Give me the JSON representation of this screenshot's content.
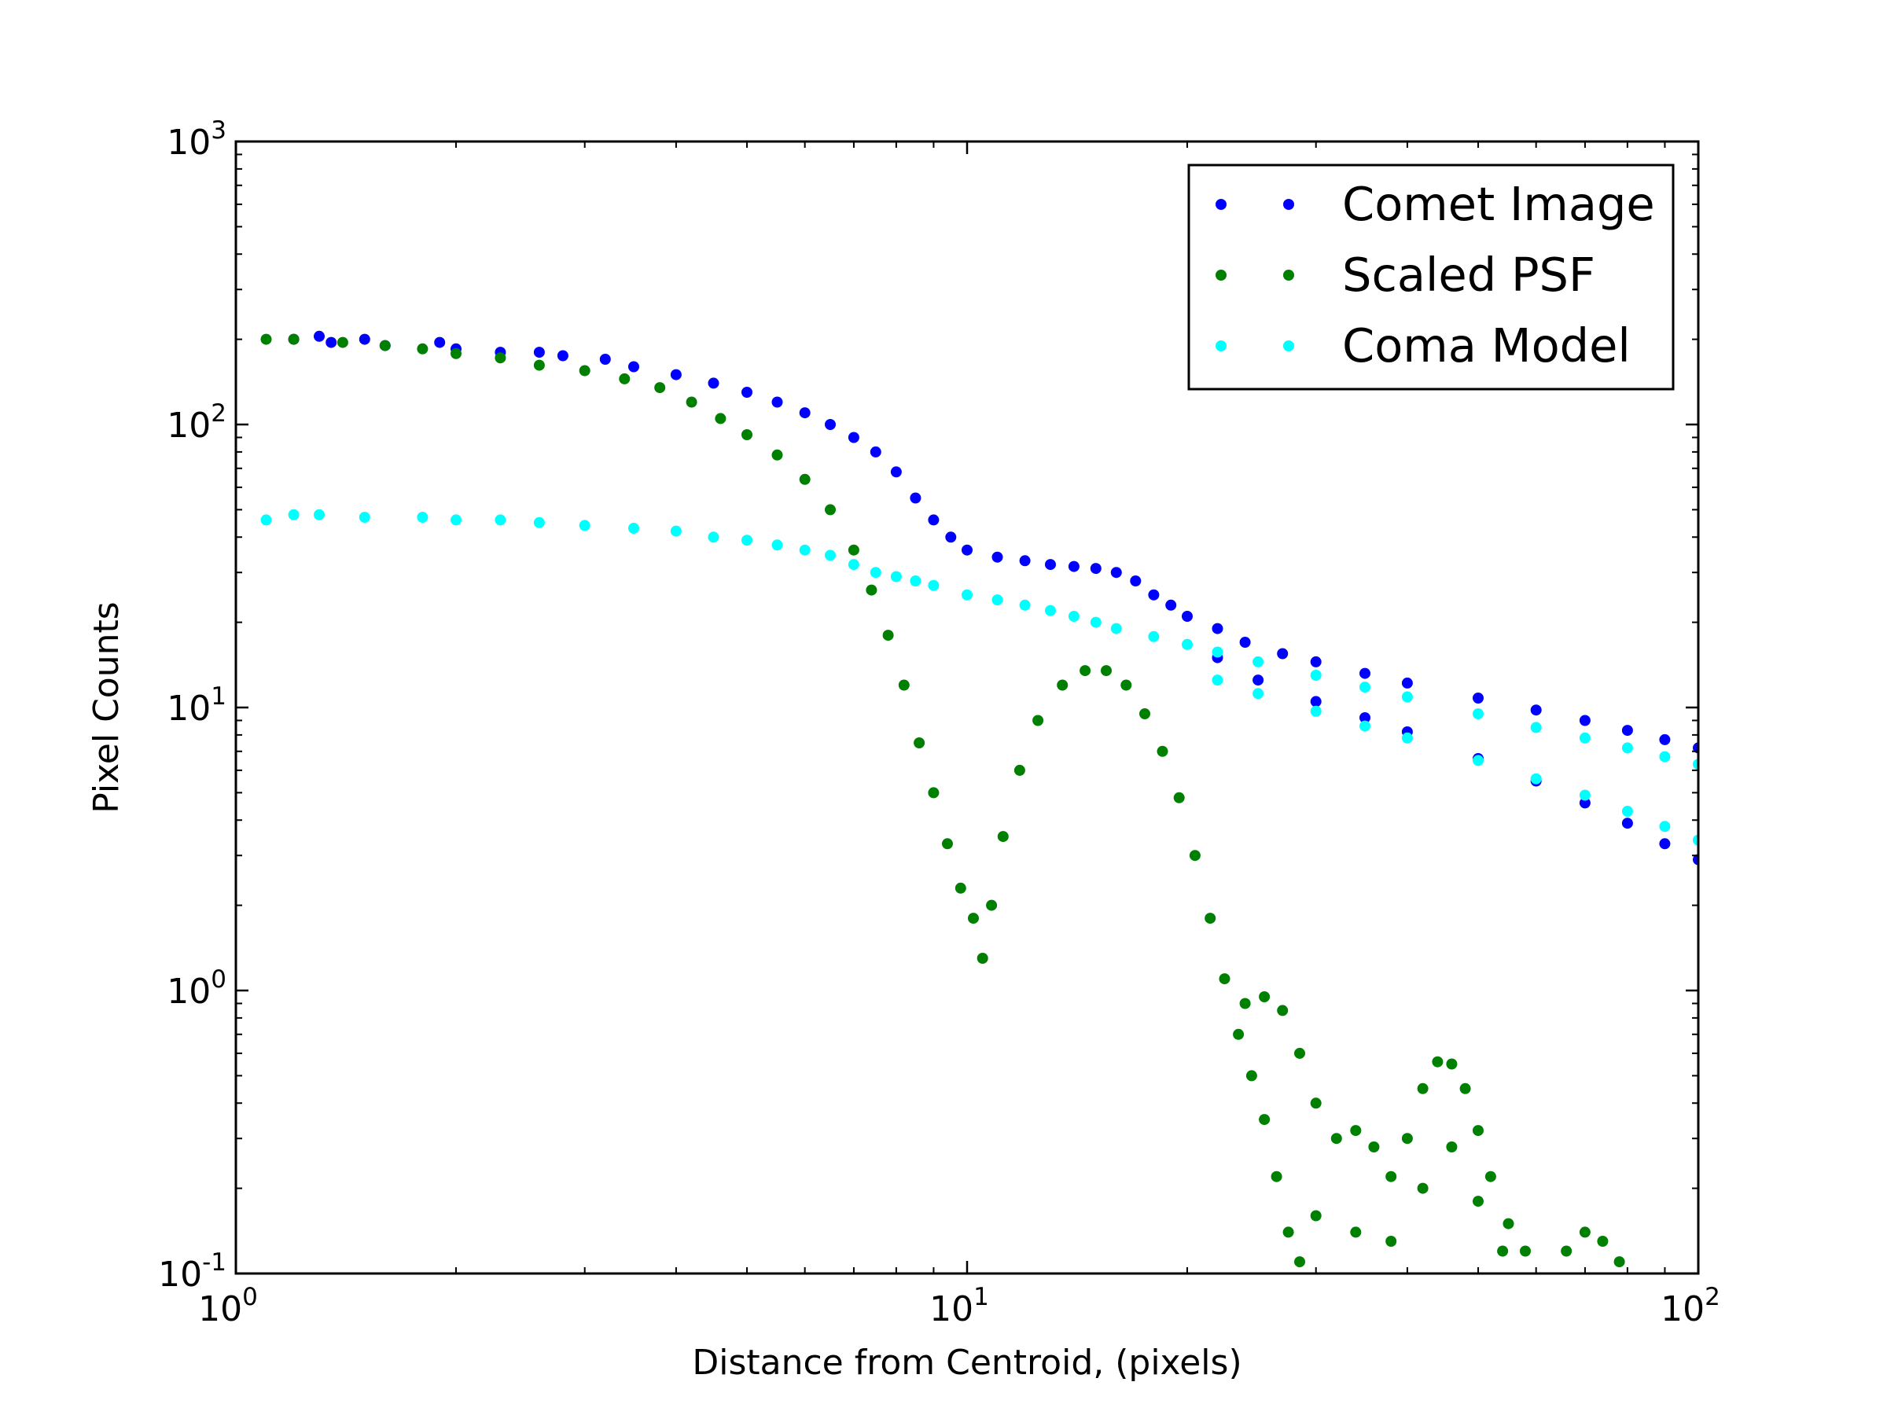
{
  "chart_data": {
    "type": "scatter",
    "title": "",
    "xlabel": "Distance from Centroid, (pixels)",
    "ylabel": "Pixel Counts",
    "xscale": "log",
    "yscale": "log",
    "xlim": [
      1,
      100
    ],
    "ylim": [
      0.1,
      1000
    ],
    "grid": false,
    "legend_position": "top-right",
    "x_ticks": [
      {
        "value": 1,
        "base": "10",
        "exp": "0"
      },
      {
        "value": 10,
        "base": "10",
        "exp": "1"
      },
      {
        "value": 100,
        "base": "10",
        "exp": "2"
      }
    ],
    "y_ticks": [
      {
        "value": 0.1,
        "base": "10",
        "exp": "-1"
      },
      {
        "value": 1,
        "base": "10",
        "exp": "0"
      },
      {
        "value": 10,
        "base": "10",
        "exp": "1"
      },
      {
        "value": 100,
        "base": "10",
        "exp": "2"
      },
      {
        "value": 1000,
        "base": "10",
        "exp": "3"
      }
    ],
    "series": [
      {
        "name": "Comet Image",
        "color": "#0000ff",
        "points": [
          [
            1.2,
            200
          ],
          [
            1.3,
            205
          ],
          [
            1.35,
            195
          ],
          [
            1.5,
            200
          ],
          [
            1.6,
            190
          ],
          [
            1.9,
            195
          ],
          [
            2.0,
            185
          ],
          [
            2.3,
            180
          ],
          [
            2.6,
            180
          ],
          [
            2.8,
            175
          ],
          [
            3.2,
            170
          ],
          [
            3.5,
            160
          ],
          [
            4.0,
            150
          ],
          [
            4.5,
            140
          ],
          [
            5.0,
            130
          ],
          [
            5.5,
            120
          ],
          [
            6.0,
            110
          ],
          [
            6.5,
            100
          ],
          [
            7.0,
            90
          ],
          [
            7.5,
            80
          ],
          [
            8.0,
            68
          ],
          [
            8.5,
            55
          ],
          [
            9.0,
            46
          ],
          [
            9.5,
            40
          ],
          [
            10.0,
            36
          ],
          [
            11.0,
            34
          ],
          [
            12.0,
            33
          ],
          [
            13.0,
            32
          ],
          [
            14.0,
            31.5
          ],
          [
            15.0,
            31
          ],
          [
            16.0,
            30
          ],
          [
            17.0,
            28
          ],
          [
            18.0,
            25
          ],
          [
            19.0,
            23
          ],
          [
            20.0,
            21
          ],
          [
            22.0,
            19
          ],
          [
            24.0,
            17
          ],
          [
            27.0,
            15.5
          ],
          [
            30.0,
            14.5
          ],
          [
            35.0,
            13.2
          ],
          [
            40.0,
            12.2
          ],
          [
            50.0,
            10.8
          ],
          [
            60.0,
            9.8
          ],
          [
            70.0,
            9.0
          ],
          [
            80.0,
            8.3
          ],
          [
            90.0,
            7.7
          ],
          [
            100.0,
            7.2
          ],
          [
            22.0,
            15
          ],
          [
            25.0,
            12.5
          ],
          [
            30.0,
            10.5
          ],
          [
            35.0,
            9.2
          ],
          [
            40.0,
            8.2
          ],
          [
            50.0,
            6.6
          ],
          [
            60.0,
            5.5
          ],
          [
            70.0,
            4.6
          ],
          [
            80.0,
            3.9
          ],
          [
            90.0,
            3.3
          ],
          [
            100.0,
            2.9
          ]
        ]
      },
      {
        "name": "Scaled PSF",
        "color": "#008000",
        "points": [
          [
            1.1,
            200
          ],
          [
            1.2,
            200
          ],
          [
            1.4,
            195
          ],
          [
            1.6,
            190
          ],
          [
            1.8,
            185
          ],
          [
            2.0,
            178
          ],
          [
            2.3,
            172
          ],
          [
            2.6,
            162
          ],
          [
            3.0,
            155
          ],
          [
            3.4,
            145
          ],
          [
            3.8,
            135
          ],
          [
            4.2,
            120
          ],
          [
            4.6,
            105
          ],
          [
            5.0,
            92
          ],
          [
            5.5,
            78
          ],
          [
            6.0,
            64
          ],
          [
            6.5,
            50
          ],
          [
            7.0,
            36
          ],
          [
            7.4,
            26
          ],
          [
            7.8,
            18
          ],
          [
            8.2,
            12
          ],
          [
            8.6,
            7.5
          ],
          [
            9.0,
            5.0
          ],
          [
            9.4,
            3.3
          ],
          [
            9.8,
            2.3
          ],
          [
            10.2,
            1.8
          ],
          [
            10.5,
            1.3
          ],
          [
            10.8,
            2.0
          ],
          [
            11.2,
            3.5
          ],
          [
            11.8,
            6.0
          ],
          [
            12.5,
            9.0
          ],
          [
            13.5,
            12.0
          ],
          [
            14.5,
            13.5
          ],
          [
            15.5,
            13.5
          ],
          [
            16.5,
            12.0
          ],
          [
            17.5,
            9.5
          ],
          [
            18.5,
            7.0
          ],
          [
            19.5,
            4.8
          ],
          [
            20.5,
            3.0
          ],
          [
            21.5,
            1.8
          ],
          [
            22.5,
            1.1
          ],
          [
            23.5,
            0.7
          ],
          [
            24.5,
            0.5
          ],
          [
            25.5,
            0.35
          ],
          [
            26.5,
            0.22
          ],
          [
            27.5,
            0.14
          ],
          [
            28.5,
            0.11
          ],
          [
            24.0,
            0.9
          ],
          [
            25.5,
            0.95
          ],
          [
            27.0,
            0.85
          ],
          [
            28.5,
            0.6
          ],
          [
            30.0,
            0.4
          ],
          [
            32.0,
            0.3
          ],
          [
            34.0,
            0.32
          ],
          [
            36.0,
            0.28
          ],
          [
            38.0,
            0.22
          ],
          [
            40.0,
            0.3
          ],
          [
            42.0,
            0.45
          ],
          [
            44.0,
            0.56
          ],
          [
            46.0,
            0.55
          ],
          [
            48.0,
            0.45
          ],
          [
            50.0,
            0.32
          ],
          [
            52.0,
            0.22
          ],
          [
            55.0,
            0.15
          ],
          [
            58.0,
            0.12
          ],
          [
            30.0,
            0.16
          ],
          [
            34.0,
            0.14
          ],
          [
            38.0,
            0.13
          ],
          [
            42.0,
            0.2
          ],
          [
            46.0,
            0.28
          ],
          [
            50.0,
            0.18
          ],
          [
            54.0,
            0.12
          ],
          [
            66.0,
            0.12
          ],
          [
            70.0,
            0.14
          ],
          [
            74.0,
            0.13
          ],
          [
            78.0,
            0.11
          ]
        ]
      },
      {
        "name": "Coma Model",
        "color": "#00ffff",
        "points": [
          [
            1.1,
            46
          ],
          [
            1.2,
            48
          ],
          [
            1.3,
            48
          ],
          [
            1.5,
            47
          ],
          [
            1.8,
            47
          ],
          [
            2.0,
            46
          ],
          [
            2.3,
            46
          ],
          [
            2.6,
            45
          ],
          [
            3.0,
            44
          ],
          [
            3.5,
            43
          ],
          [
            4.0,
            42
          ],
          [
            4.5,
            40
          ],
          [
            5.0,
            39
          ],
          [
            5.5,
            37.5
          ],
          [
            6.0,
            36
          ],
          [
            6.5,
            34.5
          ],
          [
            7.0,
            32
          ],
          [
            7.5,
            30
          ],
          [
            8.0,
            29
          ],
          [
            8.5,
            28
          ],
          [
            9.0,
            27
          ],
          [
            10.0,
            25
          ],
          [
            11.0,
            24
          ],
          [
            12.0,
            23
          ],
          [
            13.0,
            22
          ],
          [
            14.0,
            21
          ],
          [
            15.0,
            20
          ],
          [
            16.0,
            19
          ],
          [
            18.0,
            17.8
          ],
          [
            20.0,
            16.7
          ],
          [
            22.0,
            15.7
          ],
          [
            25.0,
            14.5
          ],
          [
            30.0,
            13.0
          ],
          [
            35.0,
            11.8
          ],
          [
            40.0,
            10.9
          ],
          [
            50.0,
            9.5
          ],
          [
            60.0,
            8.5
          ],
          [
            70.0,
            7.8
          ],
          [
            80.0,
            7.2
          ],
          [
            90.0,
            6.7
          ],
          [
            100.0,
            6.3
          ],
          [
            22.0,
            12.5
          ],
          [
            25.0,
            11.2
          ],
          [
            30.0,
            9.7
          ],
          [
            35.0,
            8.6
          ],
          [
            40.0,
            7.8
          ],
          [
            50.0,
            6.5
          ],
          [
            60.0,
            5.6
          ],
          [
            70.0,
            4.9
          ],
          [
            80.0,
            4.3
          ],
          [
            90.0,
            3.8
          ],
          [
            100.0,
            3.4
          ]
        ]
      }
    ]
  }
}
